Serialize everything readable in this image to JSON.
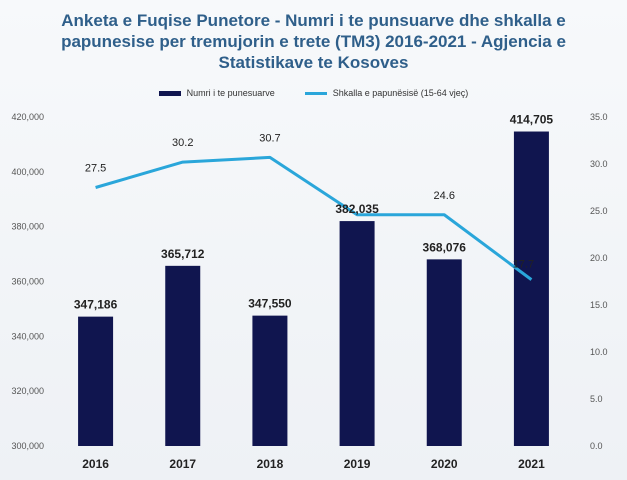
{
  "title_lines": [
    "Anketa e Fuqise Punetore - Numri i te punsuarve dhe shkalla e",
    "papunesise per tremujorin e trete (TM3) 2016-2021 - Agjencia e",
    "Statistikave te Kosoves"
  ],
  "chart_data": {
    "type": "bar",
    "categories": [
      "2016",
      "2017",
      "2018",
      "2019",
      "2020",
      "2021"
    ],
    "series": [
      {
        "name": "Numri i te punesuarve",
        "type": "bar",
        "axis": "left",
        "values": [
          347186,
          365712,
          347550,
          382035,
          368076,
          414705
        ],
        "labels": [
          "347,186",
          "365,712",
          "347,550",
          "382,035",
          "368,076",
          "414,705"
        ],
        "color": "#10154f"
      },
      {
        "name": "Shkalla e papunësisë (15-64 vjeç)",
        "type": "line",
        "axis": "right",
        "values": [
          27.5,
          30.2,
          30.7,
          24.6,
          24.6,
          17.7
        ],
        "labels": [
          "27.5",
          "30.2",
          "30.7",
          "",
          "24.6",
          "17.7"
        ],
        "color": "#2aa6da"
      }
    ],
    "ylim_left": [
      300000,
      420000
    ],
    "ylim_right": [
      0,
      35
    ],
    "y_left_ticks": [
      "300,000",
      "320,000",
      "340,000",
      "360,000",
      "380,000",
      "400,000",
      "420,000"
    ],
    "y_right_ticks": [
      "0.0",
      "5.0",
      "10.0",
      "15.0",
      "20.0",
      "25.0",
      "30.0",
      "35.0"
    ],
    "legend_position": "top",
    "grid": false
  }
}
